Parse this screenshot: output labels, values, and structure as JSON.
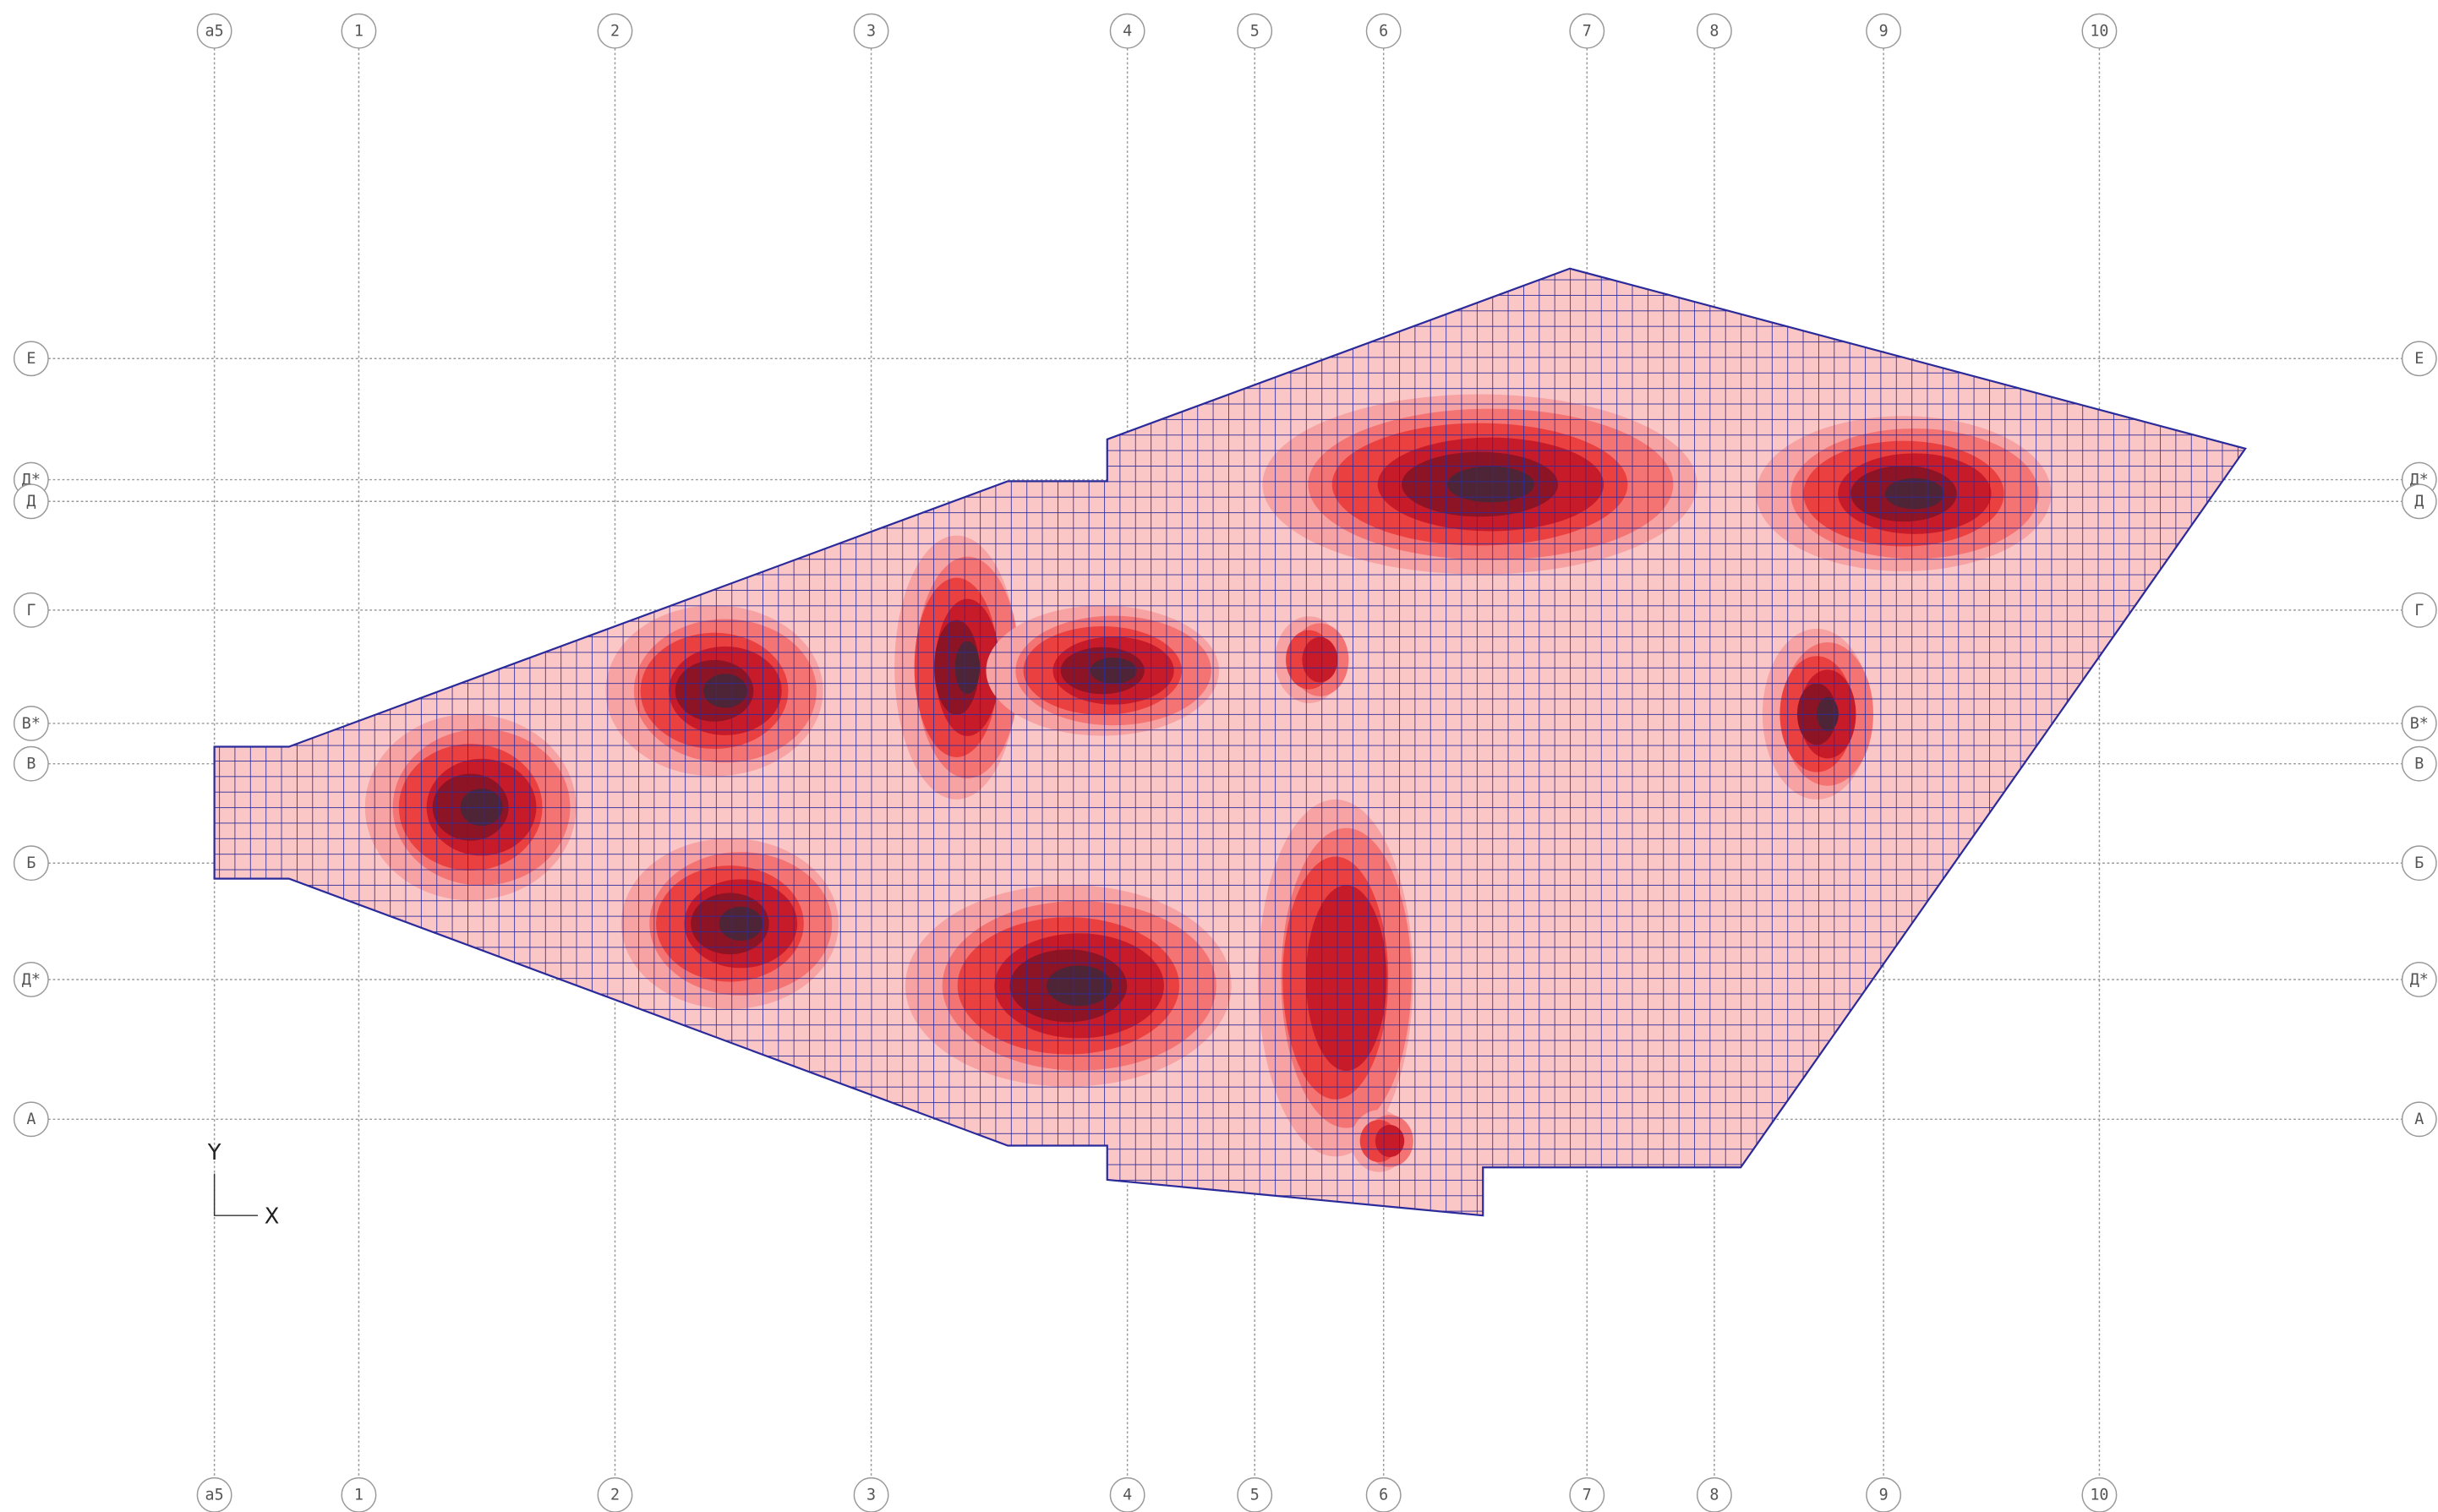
{
  "axes": {
    "vertical": [
      "а5",
      "1",
      "2",
      "3",
      "4",
      "5",
      "6",
      "7",
      "8",
      "9",
      "10"
    ],
    "horizontal": [
      "Е",
      "Д*",
      "Д",
      "Г",
      "В*",
      "В",
      "Б",
      "Д*",
      "А"
    ]
  },
  "coordinate_system": {
    "y": "Y",
    "x": "X"
  }
}
